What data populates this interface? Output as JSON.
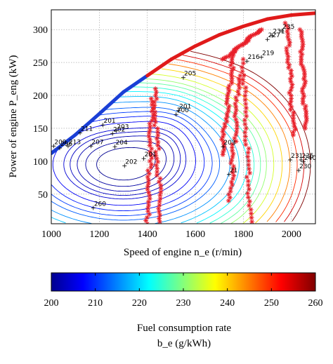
{
  "chart_data": {
    "type": "contour",
    "xlabel": "Speed of engine n_e (r/min)",
    "ylabel": "Power of engine P_eng (kW)",
    "xlim": [
      1000,
      2100
    ],
    "ylim": [
      5,
      330
    ],
    "xticks": [
      "1000",
      "1200",
      "1400",
      "1600",
      "1800",
      "2000"
    ],
    "yticks": [
      "50",
      "100",
      "150",
      "200",
      "250",
      "300"
    ],
    "grid": true,
    "colorbar": {
      "min": 200,
      "max": 260,
      "ticks": [
        "200",
        "210",
        "220",
        "230",
        "240",
        "250",
        "260"
      ],
      "label_line1": "Fuel consumption rate",
      "label_line2": "b_e (g/kWh)"
    },
    "max_power_curve": [
      [
        1000,
        112
      ],
      [
        1100,
        140
      ],
      [
        1200,
        172
      ],
      [
        1300,
        205
      ],
      [
        1400,
        230
      ],
      [
        1500,
        255
      ],
      [
        1600,
        275
      ],
      [
        1700,
        292
      ],
      [
        1800,
        305
      ],
      [
        1900,
        316
      ],
      [
        2000,
        322
      ],
      [
        2100,
        325
      ]
    ],
    "contour_labels": [
      {
        "text": "201",
        "x": 1215,
        "y": 155
      },
      {
        "text": "202",
        "x": 1255,
        "y": 142
      },
      {
        "text": "203",
        "x": 1270,
        "y": 146
      },
      {
        "text": "204",
        "x": 1265,
        "y": 122
      },
      {
        "text": "207",
        "x": 1165,
        "y": 123
      },
      {
        "text": "211",
        "x": 1120,
        "y": 143
      },
      {
        "text": "213",
        "x": 1070,
        "y": 123
      },
      {
        "text": "296",
        "x": 1035,
        "y": 120
      },
      {
        "text": "209",
        "x": 1010,
        "y": 123
      },
      {
        "text": "202",
        "x": 1305,
        "y": 93
      },
      {
        "text": "201",
        "x": 1385,
        "y": 104
      },
      {
        "text": "201",
        "x": 1530,
        "y": 177
      },
      {
        "text": "200",
        "x": 1520,
        "y": 171
      },
      {
        "text": "205",
        "x": 1550,
        "y": 227
      },
      {
        "text": "203",
        "x": 1715,
        "y": 122
      },
      {
        "text": "21",
        "x": 1740,
        "y": 80
      },
      {
        "text": "216",
        "x": 1815,
        "y": 252
      },
      {
        "text": "219",
        "x": 1875,
        "y": 258
      },
      {
        "text": "227",
        "x": 1900,
        "y": 285
      },
      {
        "text": "231",
        "x": 1920,
        "y": 291
      },
      {
        "text": "235",
        "x": 1960,
        "y": 298
      },
      {
        "text": "231",
        "x": 1995,
        "y": 102
      },
      {
        "text": "235",
        "x": 2040,
        "y": 102
      },
      {
        "text": "240",
        "x": 2050,
        "y": 99
      },
      {
        "text": "230",
        "x": 2030,
        "y": 86
      },
      {
        "text": "260",
        "x": 1175,
        "y": 29
      }
    ]
  }
}
